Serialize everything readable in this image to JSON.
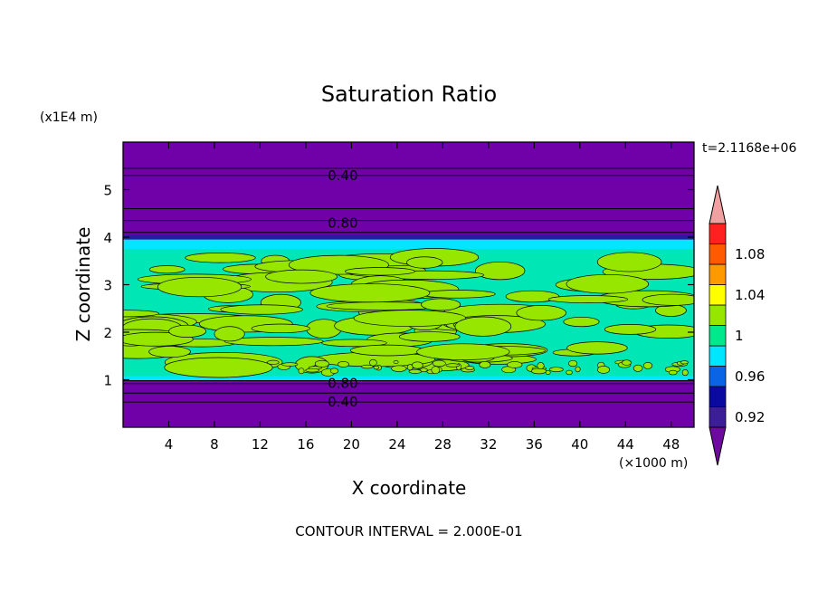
{
  "chart_data": {
    "type": "contour",
    "title": "Saturation Ratio",
    "xlabel": "X coordinate",
    "ylabel": "Z coordinate",
    "x_unit": "(×1000 m)",
    "y_unit": "(x1E4 m)",
    "time_label": "t=2.1168e+06",
    "footer": "CONTOUR INTERVAL = 2.000E-01",
    "xlim": [
      0,
      50
    ],
    "ylim": [
      0,
      6
    ],
    "x_ticks": [
      4,
      8,
      12,
      16,
      20,
      24,
      28,
      32,
      36,
      40,
      44,
      48
    ],
    "y_ticks": [
      1,
      2,
      3,
      4,
      5
    ],
    "contour_labels": [
      {
        "text": "0.40",
        "x": 17.5,
        "y": 5.3
      },
      {
        "text": "0.80",
        "x": 17.5,
        "y": 4.3
      },
      {
        "text": "0.80",
        "x": 17.5,
        "y": 0.92
      },
      {
        "text": "0.40",
        "x": 17.5,
        "y": 0.53
      }
    ],
    "colorbar": {
      "labels": [
        "1.08",
        "1.04",
        "1",
        "0.96",
        "0.92"
      ],
      "levels": [
        {
          "value": 0.92,
          "color": "#3c1e96"
        },
        {
          "value": 0.94,
          "color": "#0a0aa0"
        },
        {
          "value": 0.96,
          "color": "#0a64e6"
        },
        {
          "value": 0.98,
          "color": "#00e6ff"
        },
        {
          "value": 1.0,
          "color": "#00e88c"
        },
        {
          "value": 1.02,
          "color": "#96e600"
        },
        {
          "value": 1.04,
          "color": "#ffff00"
        },
        {
          "value": 1.06,
          "color": "#ff9900"
        },
        {
          "value": 1.08,
          "color": "#ff5a00"
        },
        {
          "value": 1.1,
          "color": "#ff2020"
        }
      ],
      "low_color": "#6e0aa0",
      "high_color": "#f0a0a0"
    },
    "fill_colors": {
      "dry": "#7000a8",
      "dry_dark": "#2a1aa0",
      "moist_teal": "#00e6b4",
      "moist_green": "#96e600",
      "cyan": "#00e6ff"
    }
  }
}
